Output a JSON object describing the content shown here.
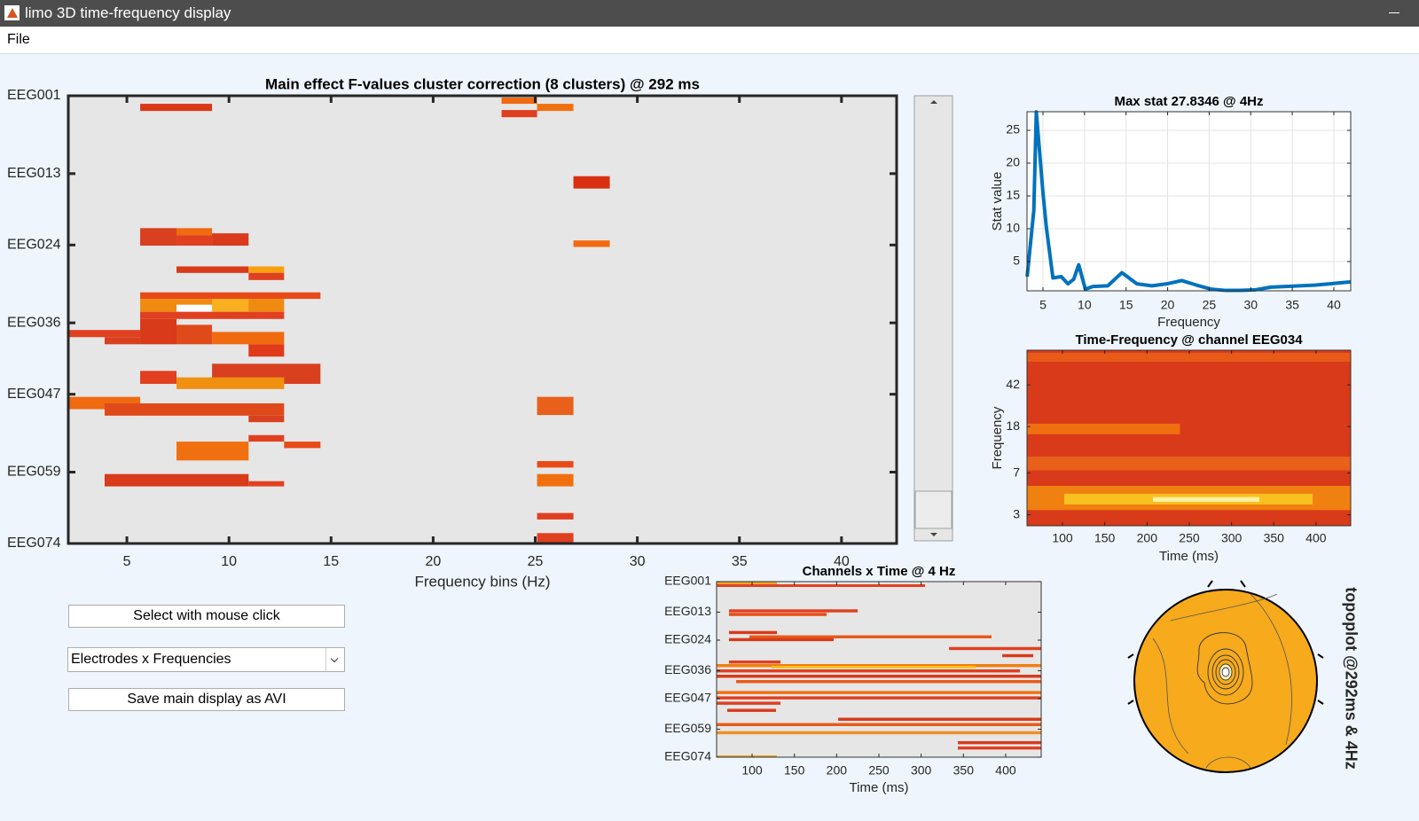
{
  "window": {
    "title": "limo 3D time-frequency display"
  },
  "menu": [
    "File"
  ],
  "controls": {
    "select_button": "Select with mouse click",
    "dropdown": "Electrodes x Frequencies",
    "save_button": "Save main display as AVI"
  },
  "topoplot": {
    "title": "topoplot @292ms & 4Hz"
  },
  "chart_data": [
    {
      "type": "heatmap",
      "title": "Main effect F-values cluster correction (8 clusters) @ 292 ms",
      "xlabel": "Frequency bins (Hz)",
      "xlim": [
        2.13,
        42.7
      ],
      "xticks": [
        5,
        10,
        15,
        20,
        25,
        30,
        35,
        40
      ],
      "ylim": [
        70,
        1
      ],
      "yticks": [
        {
          "value": 1,
          "label": "EEG001"
        },
        {
          "value": 13,
          "label": "EEG013"
        },
        {
          "value": 24,
          "label": "EEG024"
        },
        {
          "value": 36,
          "label": "EEG036"
        },
        {
          "value": 47,
          "label": "EEG047"
        },
        {
          "value": 59,
          "label": "EEG059"
        },
        {
          "value": 70,
          "label": "EEG074"
        }
      ],
      "background": "#e6e6e6",
      "cells": [
        {
          "x": [
            5.65,
            9.17
          ],
          "y": [
            2.24,
            3.34
          ],
          "color": "#d83a1a"
        },
        {
          "x": [
            23.35,
            25.09
          ],
          "y": [
            1.28,
            2.24
          ],
          "color": "#f06a10"
        },
        {
          "x": [
            23.35,
            25.09
          ],
          "y": [
            3.2,
            4.31
          ],
          "color": "#e04020"
        },
        {
          "x": [
            25.09,
            26.87
          ],
          "y": [
            2.24,
            3.34
          ],
          "color": "#f07010"
        },
        {
          "x": [
            26.87,
            28.65
          ],
          "y": [
            13.4,
            15.3
          ],
          "color": "#d83010"
        },
        {
          "x": [
            5.65,
            7.43
          ],
          "y": [
            21.4,
            24.1
          ],
          "color": "#d84020"
        },
        {
          "x": [
            7.43,
            9.17
          ],
          "y": [
            21.4,
            22.5
          ],
          "color": "#f06a10"
        },
        {
          "x": [
            7.43,
            9.17
          ],
          "y": [
            22.5,
            24.1
          ],
          "color": "#e04020"
        },
        {
          "x": [
            9.17,
            10.96
          ],
          "y": [
            22.2,
            24.1
          ],
          "color": "#d83a1a"
        },
        {
          "x": [
            26.87,
            28.65
          ],
          "y": [
            23.3,
            24.3
          ],
          "color": "#f06a10"
        },
        {
          "x": [
            7.43,
            10.96
          ],
          "y": [
            27.3,
            28.3
          ],
          "color": "#d83a1a"
        },
        {
          "x": [
            10.96,
            12.7
          ],
          "y": [
            27.3,
            28.3
          ],
          "color": "#f8a010"
        },
        {
          "x": [
            10.96,
            12.7
          ],
          "y": [
            28.3,
            29.4
          ],
          "color": "#e04020"
        },
        {
          "x": [
            5.65,
            14.48
          ],
          "y": [
            31.3,
            32.3
          ],
          "color": "#e84a18"
        },
        {
          "x": [
            5.65,
            12.7
          ],
          "y": [
            32.3,
            34.3
          ],
          "color": "#f08a10"
        },
        {
          "x": [
            9.17,
            10.96
          ],
          "y": [
            32.3,
            34.3
          ],
          "color": "#f8b020"
        },
        {
          "x": [
            7.43,
            9.17
          ],
          "y": [
            33.2,
            34.3
          ],
          "color": "#ffffff"
        },
        {
          "x": [
            5.65,
            12.7
          ],
          "y": [
            34.3,
            35.4
          ],
          "color": "#e04020"
        },
        {
          "x": [
            5.65,
            7.43
          ],
          "y": [
            35.4,
            39.3
          ],
          "color": "#d83a1a"
        },
        {
          "x": [
            2.13,
            5.65
          ],
          "y": [
            37.1,
            38.2
          ],
          "color": "#e04020"
        },
        {
          "x": [
            3.91,
            5.65
          ],
          "y": [
            38.2,
            39.3
          ],
          "color": "#d84020"
        },
        {
          "x": [
            7.43,
            9.17
          ],
          "y": [
            36.3,
            39.3
          ],
          "color": "#e04a1a"
        },
        {
          "x": [
            9.17,
            12.7
          ],
          "y": [
            37.4,
            39.3
          ],
          "color": "#f06a10"
        },
        {
          "x": [
            10.96,
            12.7
          ],
          "y": [
            39.3,
            41.2
          ],
          "color": "#e03a18"
        },
        {
          "x": [
            9.17,
            14.48
          ],
          "y": [
            42.3,
            45.4
          ],
          "color": "#d84020"
        },
        {
          "x": [
            5.65,
            7.43
          ],
          "y": [
            43.4,
            45.4
          ],
          "color": "#e04020"
        },
        {
          "x": [
            7.43,
            12.7
          ],
          "y": [
            44.4,
            46.2
          ],
          "color": "#f09010"
        },
        {
          "x": [
            2.13,
            5.65
          ],
          "y": [
            47.4,
            49.3
          ],
          "color": "#f06a10"
        },
        {
          "x": [
            3.91,
            12.7
          ],
          "y": [
            48.4,
            50.3
          ],
          "color": "#e04a1a"
        },
        {
          "x": [
            10.96,
            12.7
          ],
          "y": [
            50.3,
            51.3
          ],
          "color": "#d84020"
        },
        {
          "x": [
            25.09,
            26.87
          ],
          "y": [
            47.4,
            50.2
          ],
          "color": "#e8601a"
        },
        {
          "x": [
            10.96,
            12.7
          ],
          "y": [
            53.3,
            54.3
          ],
          "color": "#e04020"
        },
        {
          "x": [
            7.43,
            10.96
          ],
          "y": [
            54.3,
            57.2
          ],
          "color": "#f07010"
        },
        {
          "x": [
            12.7,
            14.48
          ],
          "y": [
            54.3,
            55.3
          ],
          "color": "#e84a18"
        },
        {
          "x": [
            3.91,
            10.96
          ],
          "y": [
            59.3,
            61.2
          ],
          "color": "#d83a1a"
        },
        {
          "x": [
            10.96,
            12.7
          ],
          "y": [
            60.4,
            61.2
          ],
          "color": "#e04020"
        },
        {
          "x": [
            25.09,
            26.87
          ],
          "y": [
            57.3,
            58.3
          ],
          "color": "#e84a18"
        },
        {
          "x": [
            25.09,
            26.87
          ],
          "y": [
            59.3,
            61.2
          ],
          "color": "#f07010"
        },
        {
          "x": [
            25.09,
            26.87
          ],
          "y": [
            65.3,
            66.3
          ],
          "color": "#e04020"
        },
        {
          "x": [
            25.09,
            26.87
          ],
          "y": [
            68.4,
            70.0
          ],
          "color": "#e04020"
        }
      ]
    },
    {
      "type": "line",
      "title": "Max stat 27.8346 @ 4Hz",
      "xlabel": "Frequency",
      "ylabel": "Stat value",
      "xlim": [
        3.08,
        42.03
      ],
      "xticks": [
        5,
        10,
        15,
        20,
        25,
        30,
        35,
        40
      ],
      "ylim": [
        0.54,
        27.84
      ],
      "yticks": [
        5,
        10,
        15,
        20,
        25
      ],
      "grid": true,
      "background": "#ffffff",
      "color": "#0072bd",
      "x": [
        3.1,
        3.9,
        4.2,
        5.0,
        5.4,
        6.2,
        7.2,
        8.0,
        8.7,
        9.3,
        10.1,
        11.0,
        12.8,
        14.5,
        16.3,
        18.1,
        19.9,
        21.7,
        23.5,
        25.2,
        27.0,
        28.8,
        30.6,
        32.4,
        34.2,
        35.9,
        37.7,
        39.5,
        41.2,
        42.0
      ],
      "values": [
        2.7,
        12.8,
        27.8,
        15.5,
        10.3,
        2.5,
        2.7,
        1.6,
        2.3,
        4.5,
        0.8,
        1.2,
        1.3,
        3.3,
        1.6,
        1.3,
        1.6,
        2.1,
        1.4,
        0.8,
        0.6,
        0.6,
        0.7,
        1.1,
        1.2,
        1.3,
        1.4,
        1.6,
        1.8,
        1.9
      ]
    },
    {
      "type": "heatmap",
      "title": "Time-Frequency @ channel EEG034",
      "xlabel": "Time (ms)",
      "ylabel": "Frequency",
      "xlim": [
        58,
        441
      ],
      "xticks": [
        100,
        150,
        200,
        250,
        300,
        350,
        400
      ],
      "ylim": [
        2.4,
        85
      ],
      "yticks": [
        3,
        7,
        18,
        42
      ],
      "log": true,
      "background": "#d83a1a",
      "cells": [
        {
          "x": [
            58,
            441
          ],
          "y": [
            67.3,
            80.7
          ],
          "color": "#e85a18"
        },
        {
          "x": [
            58,
            239
          ],
          "y": [
            15.4,
            19.1
          ],
          "color": "#f07010"
        },
        {
          "x": [
            58,
            441
          ],
          "y": [
            7.4,
            9.8
          ],
          "color": "#e8601a"
        },
        {
          "x": [
            58,
            441
          ],
          "y": [
            3.3,
            5.4
          ],
          "color": "#f08010"
        },
        {
          "x": [
            102,
            396
          ],
          "y": [
            3.7,
            4.6
          ],
          "color": "#f8c020"
        },
        {
          "x": [
            207,
            333
          ],
          "y": [
            3.9,
            4.3
          ],
          "color": "#fff0a0"
        }
      ]
    },
    {
      "type": "heatmap",
      "title": "Channels x Time @ 4 Hz",
      "xlabel": "Time (ms)",
      "xlim": [
        58,
        442
      ],
      "xticks": [
        100,
        150,
        200,
        250,
        300,
        350,
        400
      ],
      "ylim": [
        70,
        1
      ],
      "yticks": [
        {
          "value": 1,
          "label": "EEG001"
        },
        {
          "value": 13,
          "label": "EEG013"
        },
        {
          "value": 24,
          "label": "EEG024"
        },
        {
          "value": 36,
          "label": "EEG036"
        },
        {
          "value": 47,
          "label": "EEG047"
        },
        {
          "value": 59,
          "label": "EEG059"
        },
        {
          "value": 70,
          "label": "EEG074"
        }
      ],
      "background": "#e6e6e6",
      "cells": [
        {
          "x": [
            58,
            129.4
          ],
          "y": [
            1,
            2
          ],
          "color": "#f0a020"
        },
        {
          "x": [
            58,
            304.6
          ],
          "y": [
            2.06,
            3.1
          ],
          "color": "#e04020"
        },
        {
          "x": [
            72.7,
            224.9
          ],
          "y": [
            11.9,
            13.1
          ],
          "color": "#e04020"
        },
        {
          "x": [
            72.7,
            188.1
          ],
          "y": [
            13.3,
            14.5
          ],
          "color": "#e84a18"
        },
        {
          "x": [
            72.7,
            129.4
          ],
          "y": [
            20.4,
            21.6
          ],
          "color": "#d83a1a"
        },
        {
          "x": [
            96.9,
            383.3
          ],
          "y": [
            22.1,
            23.3
          ],
          "color": "#e85a18"
        },
        {
          "x": [
            72.7,
            196.5
          ],
          "y": [
            23.2,
            24.4
          ],
          "color": "#d83a1a"
        },
        {
          "x": [
            333,
            442
          ],
          "y": [
            26.7,
            27.9
          ],
          "color": "#e04020"
        },
        {
          "x": [
            395.9,
            432.6
          ],
          "y": [
            29.5,
            30.7
          ],
          "color": "#d83a1a"
        },
        {
          "x": [
            72.7,
            133.6
          ],
          "y": [
            32,
            33.2
          ],
          "color": "#e04020"
        },
        {
          "x": [
            58,
            442
          ],
          "y": [
            33.4,
            34.6
          ],
          "color": "#f08010"
        },
        {
          "x": [
            123,
            364.4
          ],
          "y": [
            34.1,
            35.1
          ],
          "color": "#f8c020"
        },
        {
          "x": [
            58,
            416.9
          ],
          "y": [
            35.5,
            36.7
          ],
          "color": "#e04020"
        },
        {
          "x": [
            58,
            442
          ],
          "y": [
            37.6,
            38.8
          ],
          "color": "#d83a1a"
        },
        {
          "x": [
            81.1,
            442
          ],
          "y": [
            39.7,
            40.9
          ],
          "color": "#e85a18"
        },
        {
          "x": [
            58,
            442
          ],
          "y": [
            44,
            45.2
          ],
          "color": "#f07010"
        },
        {
          "x": [
            58,
            442
          ],
          "y": [
            46.1,
            47.3
          ],
          "color": "#e04020"
        },
        {
          "x": [
            58,
            133.6
          ],
          "y": [
            48.2,
            49.4
          ],
          "color": "#e04020"
        },
        {
          "x": [
            70.6,
            128.3
          ],
          "y": [
            51,
            52.2
          ],
          "color": "#d83a1a"
        },
        {
          "x": [
            201.8,
            442
          ],
          "y": [
            54.5,
            55.7
          ],
          "color": "#d83a1a"
        },
        {
          "x": [
            58,
            442
          ],
          "y": [
            56.6,
            57.8
          ],
          "color": "#e85a18"
        },
        {
          "x": [
            58,
            442
          ],
          "y": [
            59.8,
            61
          ],
          "color": "#f09020"
        },
        {
          "x": [
            343.4,
            442
          ],
          "y": [
            63.7,
            64.9
          ],
          "color": "#d83a1a"
        },
        {
          "x": [
            343.4,
            442
          ],
          "y": [
            65.8,
            67
          ],
          "color": "#e04020"
        },
        {
          "x": [
            58,
            129.4
          ],
          "y": [
            69.3,
            70
          ],
          "color": "#f0a020"
        }
      ]
    }
  ]
}
